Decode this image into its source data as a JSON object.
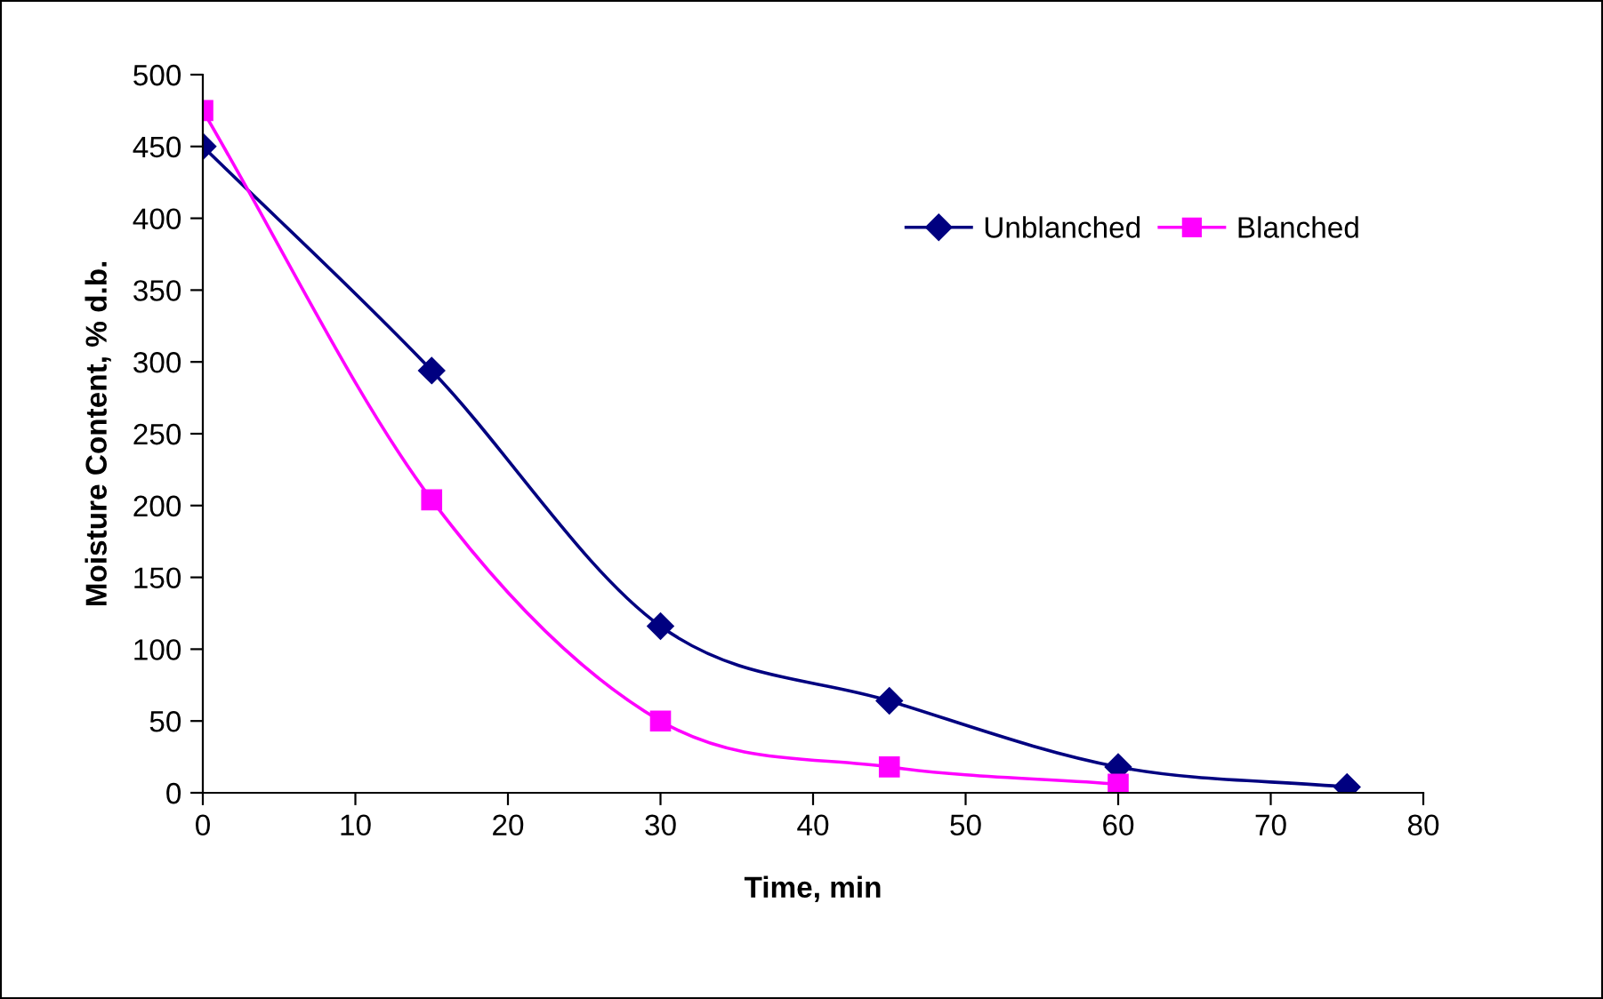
{
  "chart_data": {
    "type": "line",
    "xlabel": "Time, min",
    "ylabel": "Moisture Content, % d.b.",
    "xlim": [
      0,
      80
    ],
    "xticks": [
      0,
      10,
      20,
      30,
      40,
      50,
      60,
      70,
      80
    ],
    "ylim": [
      0,
      500
    ],
    "yticks": [
      0,
      50,
      100,
      150,
      200,
      250,
      300,
      350,
      400,
      450,
      500
    ],
    "grid": false,
    "legend": "top right",
    "line_style": "solid",
    "series": [
      {
        "name": "Unblanched",
        "color": "#000080",
        "marker": "diamond",
        "x": [
          0,
          15,
          30,
          45,
          60,
          75
        ],
        "values": [
          450,
          294,
          116,
          64,
          18,
          4
        ]
      },
      {
        "name": "Blanched",
        "color": "#ff00ff",
        "marker": "square",
        "x": [
          0,
          15,
          30,
          45,
          60
        ],
        "values": [
          475,
          204,
          50,
          18,
          6
        ]
      }
    ]
  }
}
